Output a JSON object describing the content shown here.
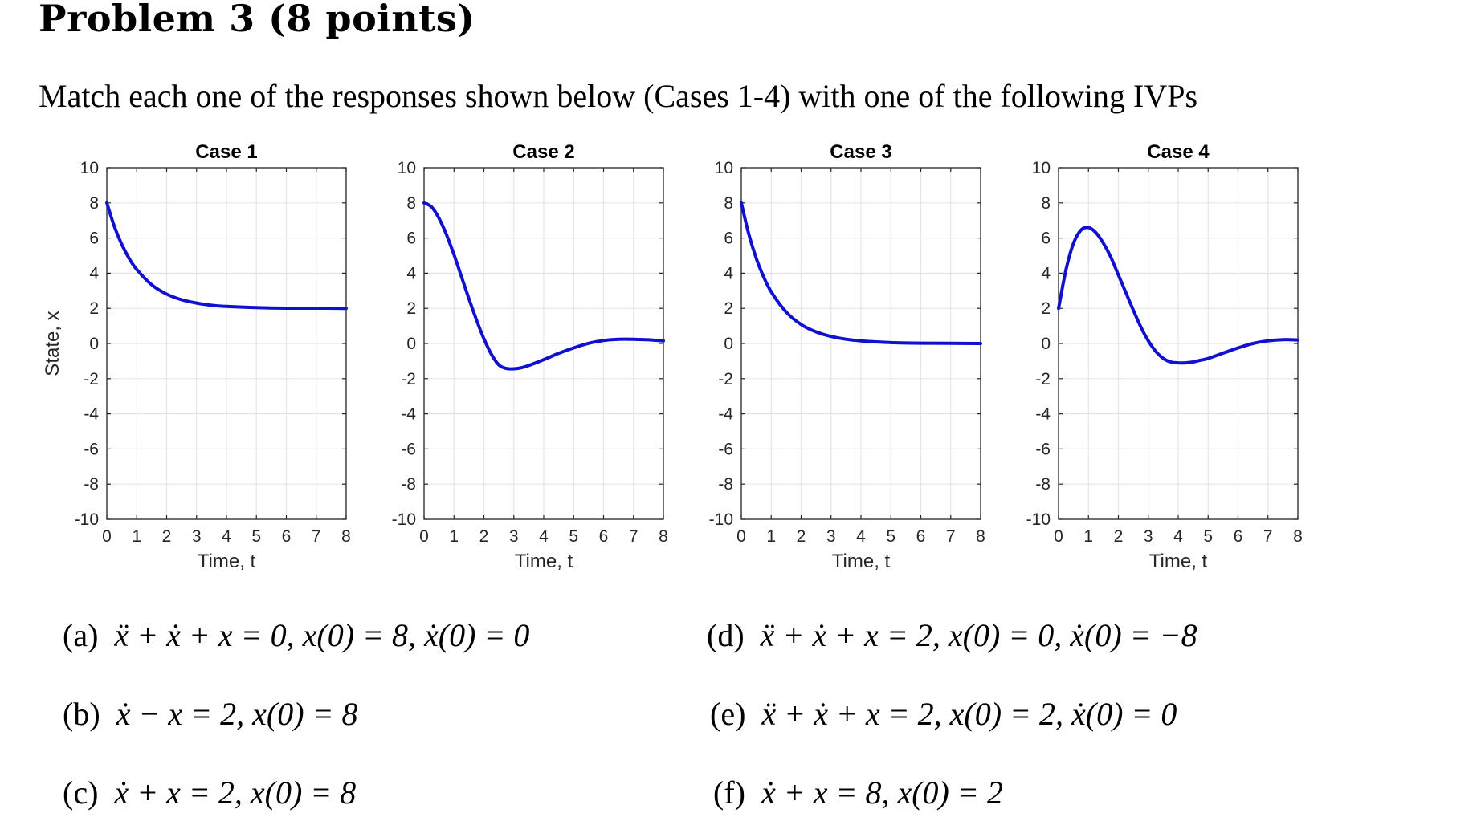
{
  "heading": "Problem 3 (8 points)",
  "prompt": "Match each one of the responses shown below (Cases 1-4) with one of the following IVPs",
  "options": [
    {
      "label": "(a)",
      "equation": "ẍ + ẋ + x = 0, x(0) = 8, ẋ(0) = 0"
    },
    {
      "label": "(b)",
      "equation": "ẋ − x = 2, x(0) = 8"
    },
    {
      "label": "(c)",
      "equation": "ẋ + x = 2, x(0) = 8"
    },
    {
      "label": "(d)",
      "equation": "ẍ + ẋ + x = 2, x(0) = 0, ẋ(0) = −8"
    },
    {
      "label": "(e)",
      "equation": "ẍ + ẋ + x = 2, x(0) = 2, ẋ(0) = 0"
    },
    {
      "label": "(f)",
      "equation": "ẋ + x = 8, x(0) = 2"
    }
  ],
  "chart_data": [
    {
      "type": "line",
      "title": "Case 1",
      "xlabel": "Time, t",
      "ylabel": "State, x",
      "xlim": [
        0,
        8
      ],
      "ylim": [
        -10,
        10
      ],
      "xticks": [
        0,
        1,
        2,
        3,
        4,
        5,
        6,
        7,
        8
      ],
      "yticks": [
        10,
        8,
        6,
        4,
        2,
        0,
        -2,
        -4,
        -6,
        -8,
        -10
      ],
      "grid": true,
      "line_color": "#1010d0",
      "series": [
        {
          "x": [
            0,
            0.25,
            0.5,
            0.75,
            1,
            1.5,
            2,
            2.5,
            3,
            3.5,
            4,
            5,
            6,
            7,
            8
          ],
          "values": [
            8,
            6.67,
            5.64,
            4.83,
            4.21,
            3.34,
            2.81,
            2.49,
            2.3,
            2.18,
            2.11,
            2.04,
            2.01,
            2.01,
            2
          ]
        }
      ]
    },
    {
      "type": "line",
      "title": "Case 2",
      "xlabel": "Time, t",
      "ylabel": "",
      "xlim": [
        0,
        8
      ],
      "ylim": [
        -10,
        10
      ],
      "xticks": [
        0,
        1,
        2,
        3,
        4,
        5,
        6,
        7,
        8
      ],
      "yticks": [
        10,
        8,
        6,
        4,
        2,
        0,
        -2,
        -4,
        -6,
        -8,
        -10
      ],
      "grid": true,
      "line_color": "#1010d0",
      "series": [
        {
          "x": [
            0,
            0.25,
            0.5,
            0.75,
            1,
            1.25,
            1.5,
            1.75,
            2,
            2.25,
            2.5,
            2.75,
            3,
            3.25,
            3.5,
            4,
            4.5,
            5,
            5.5,
            6,
            6.5,
            7,
            7.5,
            8
          ],
          "values": [
            8,
            7.77,
            7.13,
            6.19,
            5.05,
            3.8,
            2.54,
            1.35,
            0.27,
            -0.61,
            -1.22,
            -1.42,
            -1.44,
            -1.38,
            -1.25,
            -0.92,
            -0.56,
            -0.25,
            0.01,
            0.17,
            0.24,
            0.24,
            0.21,
            0.15
          ]
        }
      ]
    },
    {
      "type": "line",
      "title": "Case 3",
      "xlabel": "Time, t",
      "ylabel": "",
      "xlim": [
        0,
        8
      ],
      "ylim": [
        -10,
        10
      ],
      "xticks": [
        0,
        1,
        2,
        3,
        4,
        5,
        6,
        7,
        8
      ],
      "yticks": [
        10,
        8,
        6,
        4,
        2,
        0,
        -2,
        -4,
        -6,
        -8,
        -10
      ],
      "grid": true,
      "line_color": "#1010d0",
      "series": [
        {
          "x": [
            0,
            0.25,
            0.5,
            0.75,
            1,
            1.5,
            2,
            2.5,
            3,
            3.5,
            4,
            5,
            6,
            7,
            8
          ],
          "values": [
            8,
            6.23,
            4.85,
            3.78,
            2.94,
            1.79,
            1.08,
            0.66,
            0.4,
            0.24,
            0.15,
            0.05,
            0.02,
            0.01,
            0
          ]
        }
      ]
    },
    {
      "type": "line",
      "title": "Case 4",
      "xlabel": "Time, t",
      "ylabel": "",
      "xlim": [
        0,
        8
      ],
      "ylim": [
        -10,
        10
      ],
      "xticks": [
        0,
        1,
        2,
        3,
        4,
        5,
        6,
        7,
        8
      ],
      "yticks": [
        10,
        8,
        6,
        4,
        2,
        0,
        -2,
        -4,
        -6,
        -8,
        -10
      ],
      "grid": true,
      "line_color": "#1010d0",
      "series": [
        {
          "x": [
            0,
            0.25,
            0.5,
            0.75,
            1,
            1.25,
            1.5,
            1.75,
            2,
            2.25,
            2.5,
            2.75,
            3,
            3.25,
            3.5,
            3.75,
            4,
            4.25,
            4.5,
            4.75,
            5,
            5.5,
            6,
            6.5,
            7,
            7.5,
            8
          ],
          "values": [
            2,
            4.2,
            5.7,
            6.45,
            6.6,
            6.3,
            5.7,
            4.9,
            3.9,
            2.9,
            1.9,
            0.95,
            0.15,
            -0.45,
            -0.85,
            -1.05,
            -1.1,
            -1.1,
            -1.05,
            -0.95,
            -0.85,
            -0.55,
            -0.25,
            0,
            0.15,
            0.22,
            0.2
          ]
        }
      ]
    }
  ]
}
